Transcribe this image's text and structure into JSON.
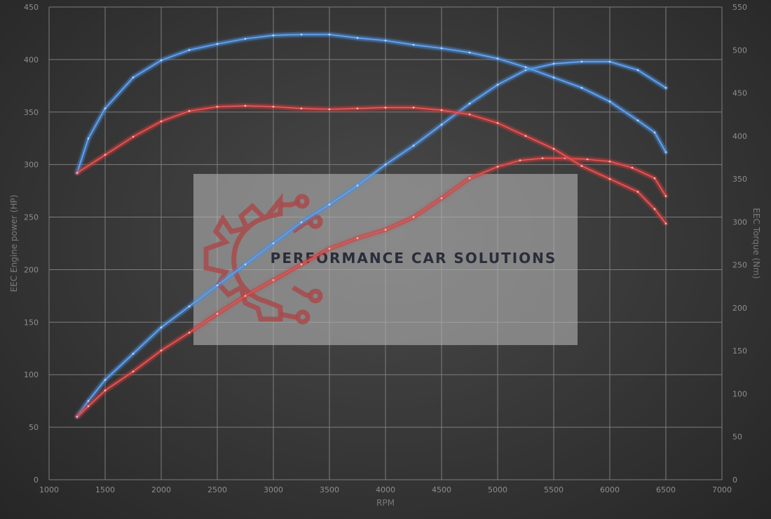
{
  "chart_data": {
    "type": "line",
    "xlabel": "RPM",
    "ylabel_left": "EEC Engine power (HP)",
    "ylabel_right": "EEC Torque (Nm)",
    "xlim": [
      1000,
      7000
    ],
    "ylim_left": [
      0,
      450
    ],
    "ylim_right": [
      0,
      550
    ],
    "x_ticks": [
      1000,
      1500,
      2000,
      2500,
      3000,
      3500,
      4000,
      4500,
      5000,
      5500,
      6000,
      6500,
      7000
    ],
    "y_ticks_left": [
      0,
      50,
      100,
      150,
      200,
      250,
      300,
      350,
      400,
      450
    ],
    "y_ticks_right": [
      0,
      50,
      100,
      150,
      200,
      250,
      300,
      350,
      400,
      450,
      500,
      550
    ],
    "grid": true,
    "series": [
      {
        "color": "#4a8ee0",
        "axis": "left",
        "x": [
          1250,
          1350,
          1500,
          1750,
          2000,
          2250,
          2500,
          2750,
          3000,
          3250,
          3500,
          3750,
          4000,
          4250,
          4500,
          4750,
          5000,
          5250,
          5500,
          5750,
          6000,
          6250,
          6500
        ],
        "y": [
          60,
          75,
          95,
          120,
          145,
          165,
          185,
          205,
          225,
          245,
          262,
          280,
          300,
          318,
          338,
          358,
          376,
          390,
          396,
          398,
          398,
          390,
          373
        ]
      },
      {
        "color": "#4a8ee0",
        "axis": "right",
        "x": [
          1250,
          1350,
          1500,
          1750,
          2000,
          2250,
          2500,
          2750,
          3000,
          3250,
          3500,
          3750,
          4000,
          4250,
          4500,
          4750,
          5000,
          5250,
          5500,
          5750,
          6000,
          6250,
          6400,
          6500
        ],
        "y": [
          357,
          397,
          432,
          468,
          488,
          500,
          507,
          513,
          517,
          518,
          518,
          514,
          511,
          506,
          502,
          497,
          490,
          480,
          468,
          456,
          440,
          418,
          404,
          381
        ]
      },
      {
        "color": "#d13b3b",
        "axis": "left",
        "x": [
          1250,
          1350,
          1500,
          1750,
          2000,
          2250,
          2500,
          2750,
          3000,
          3250,
          3500,
          3750,
          4000,
          4250,
          4500,
          4750,
          5000,
          5200,
          5400,
          5600,
          5800,
          6000,
          6200,
          6400,
          6500
        ],
        "y": [
          60,
          70,
          85,
          103,
          123,
          140,
          158,
          175,
          190,
          205,
          220,
          230,
          238,
          250,
          268,
          287,
          298,
          304,
          306,
          306,
          305,
          303,
          297,
          287,
          270
        ]
      },
      {
        "color": "#d13b3b",
        "axis": "right",
        "x": [
          1250,
          1500,
          1750,
          2000,
          2250,
          2500,
          2750,
          3000,
          3250,
          3500,
          3750,
          4000,
          4250,
          4500,
          4750,
          5000,
          5250,
          5500,
          5750,
          6000,
          6250,
          6400,
          6500
        ],
        "y": [
          357,
          378,
          399,
          417,
          429,
          434,
          435,
          434,
          432,
          431,
          432,
          433,
          433,
          430,
          425,
          415,
          400,
          385,
          365,
          350,
          335,
          315,
          298
        ]
      }
    ]
  },
  "watermark": {
    "text": "PERFORMANCE CAR SOLUTIONS"
  }
}
